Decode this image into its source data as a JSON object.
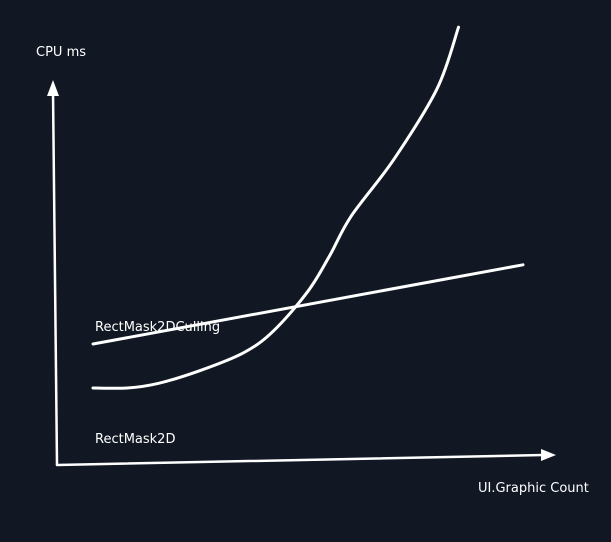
{
  "colors": {
    "background": "#111823",
    "ink": "#ffffff"
  },
  "chart_data": {
    "type": "line",
    "title": "",
    "xlabel": "UI.Graphic Count",
    "ylabel": "CPU ms",
    "grid": false,
    "legend": "none",
    "series": [
      {
        "name": "RectMask2DCulling",
        "x": [
          0,
          100
        ],
        "y": [
          20,
          38
        ]
      },
      {
        "name": "RectMask2D",
        "x": [
          0,
          8,
          15,
          25,
          35,
          42,
          50,
          55,
          60,
          70,
          80,
          85
        ],
        "y": [
          10,
          10,
          11,
          14,
          18,
          23,
          32,
          40,
          49,
          62,
          78,
          92
        ]
      }
    ]
  }
}
